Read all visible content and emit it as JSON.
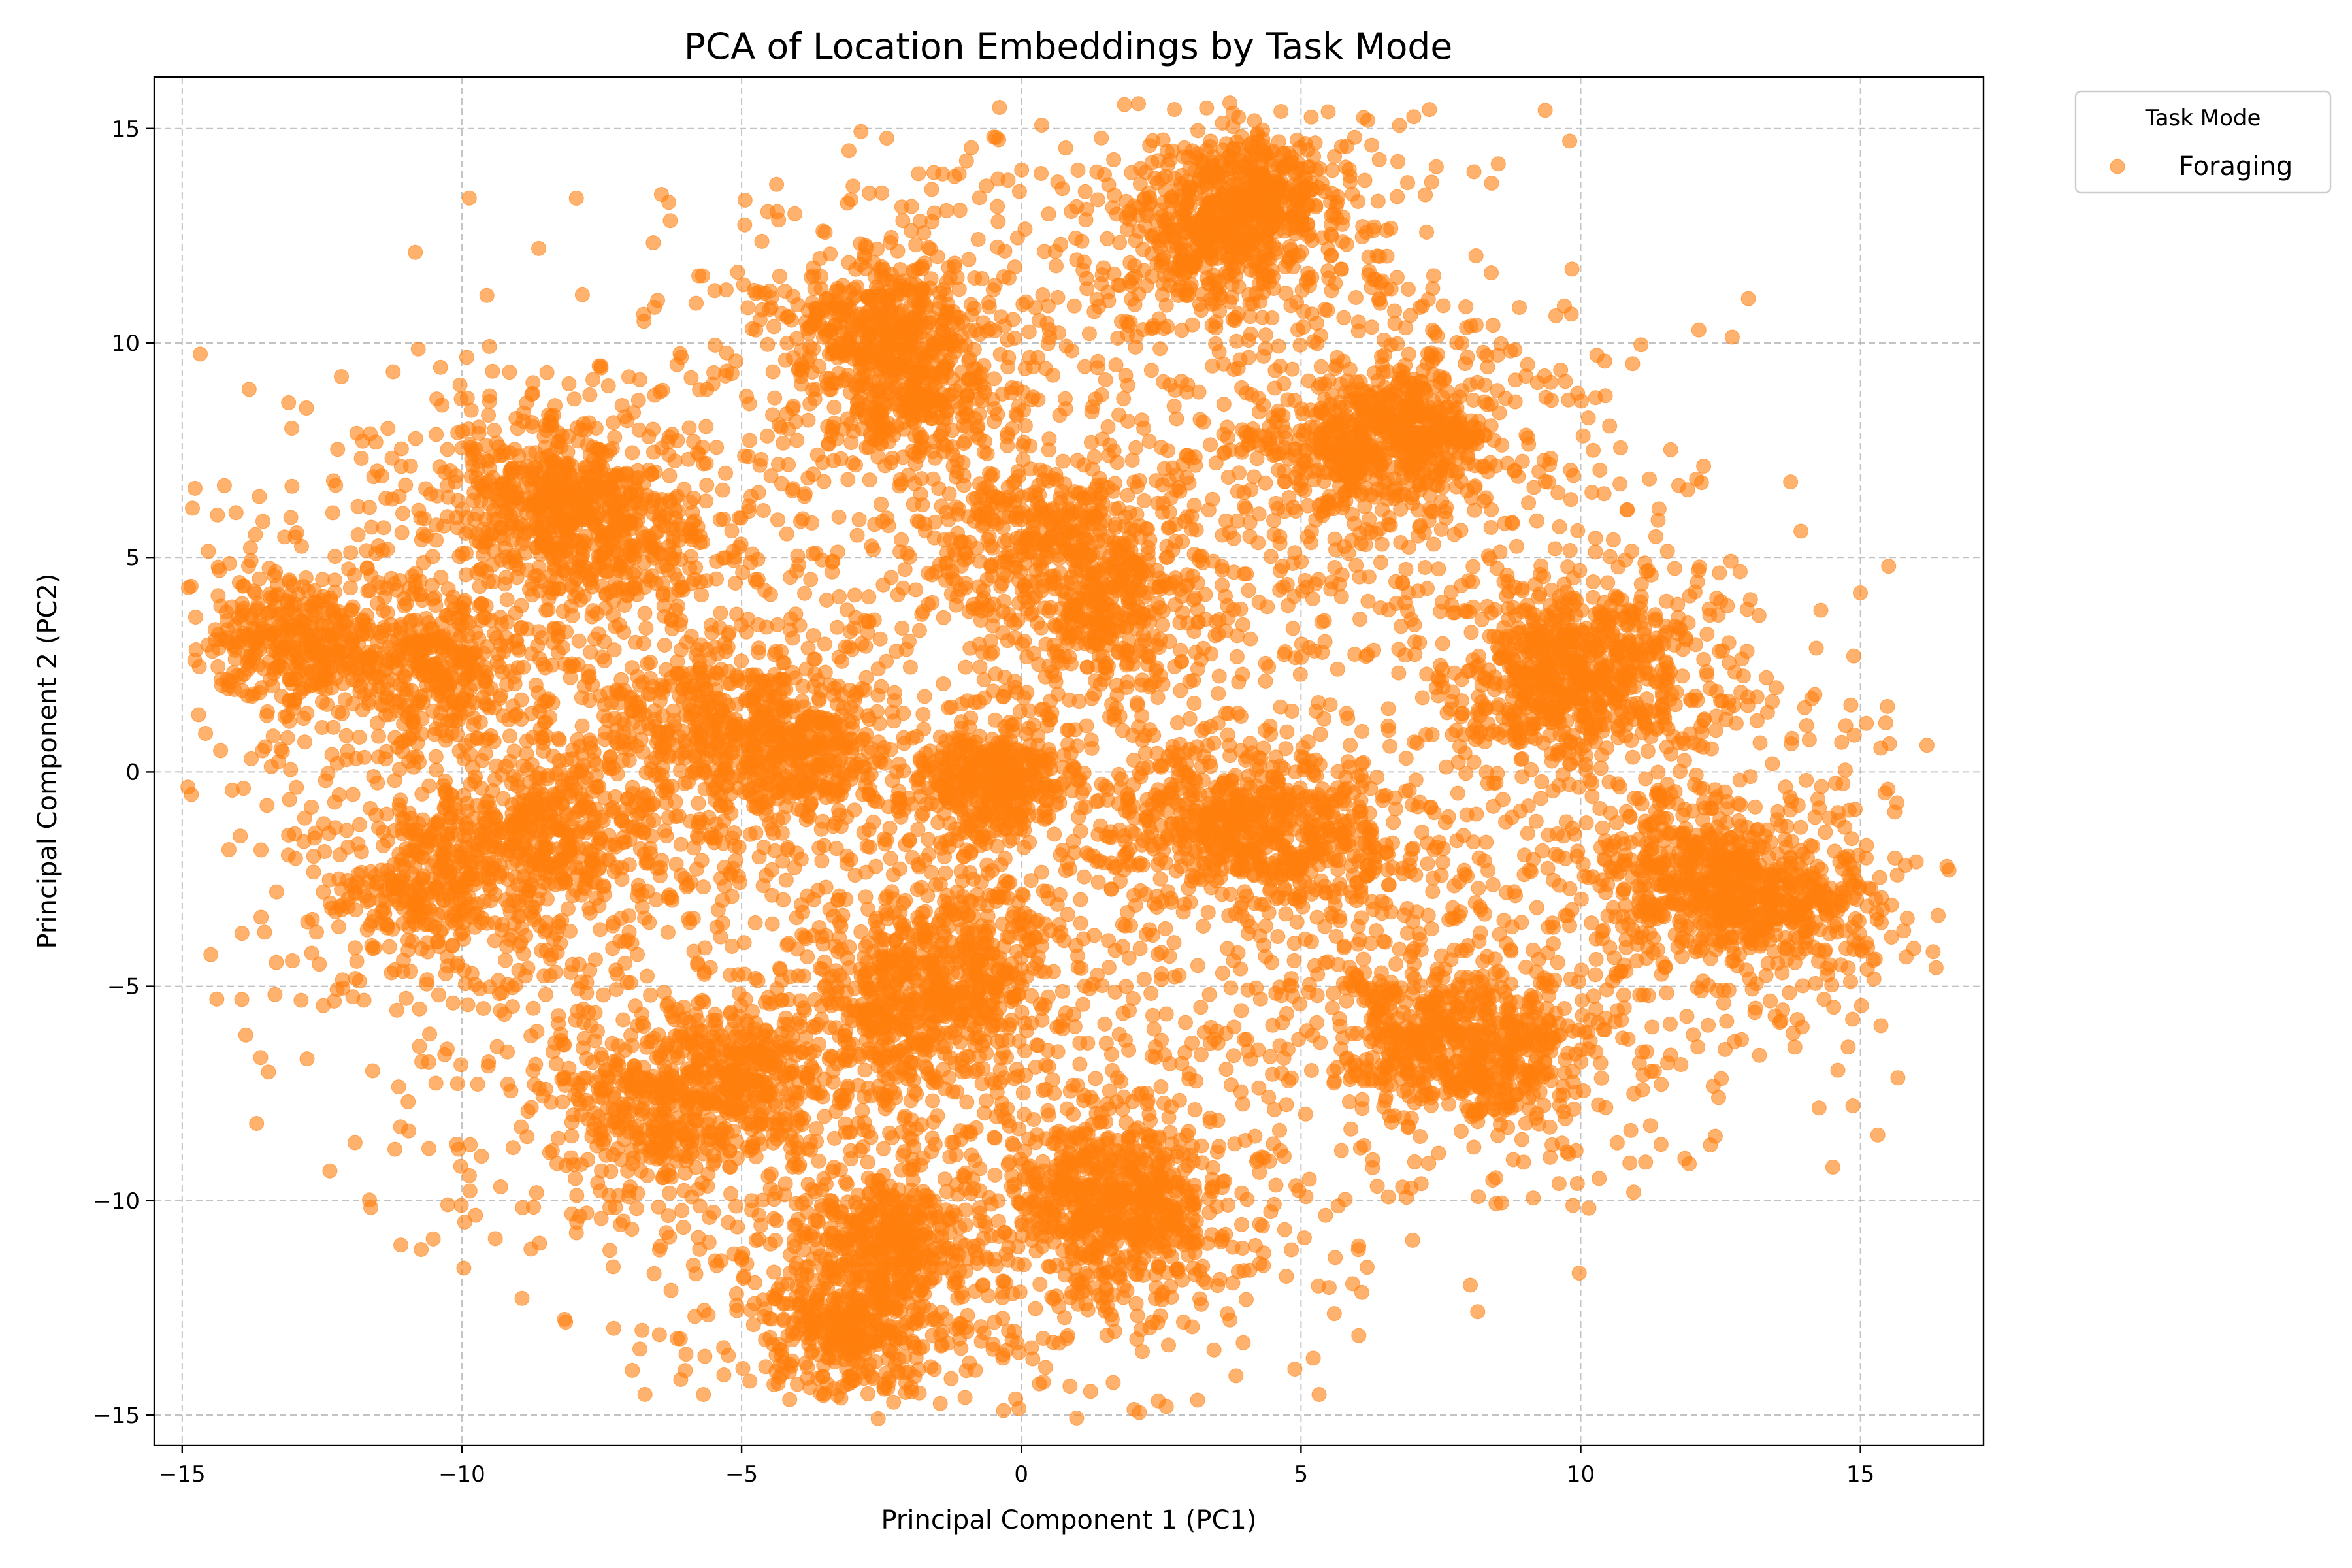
{
  "chart_data": {
    "type": "scatter",
    "title": "PCA of Location Embeddings by Task Mode",
    "xlabel": "Principal Component 1 (PC1)",
    "ylabel": "Principal Component 2 (PC2)",
    "xlim": [
      -15.5,
      17.2
    ],
    "ylim": [
      -15.7,
      16.2
    ],
    "xticks": [
      -15,
      -10,
      -5,
      0,
      5,
      10,
      15
    ],
    "yticks": [
      -15,
      -10,
      -5,
      0,
      5,
      10,
      15
    ],
    "xtick_labels": [
      "−15",
      "−10",
      "−5",
      "0",
      "5",
      "10",
      "15"
    ],
    "ytick_labels": [
      "−15",
      "−10",
      "−5",
      "0",
      "5",
      "10",
      "15"
    ],
    "grid": true,
    "legend": {
      "title": "Task Mode",
      "placement": "outside-top-right",
      "entries": [
        "Foraging"
      ]
    },
    "series": [
      {
        "name": "Foraging",
        "color": "#ff7f0e",
        "alpha": 0.6,
        "point_count": 15000,
        "clusters": [
          {
            "center": [
              -13.0,
              3.0
            ],
            "spread": 0.8
          },
          {
            "center": [
              -10.5,
              2.5
            ],
            "spread": 0.9
          },
          {
            "center": [
              -8.5,
              6.5
            ],
            "spread": 0.9
          },
          {
            "center": [
              -7.5,
              5.5
            ],
            "spread": 0.9
          },
          {
            "center": [
              -10.5,
              -2.5
            ],
            "spread": 0.9
          },
          {
            "center": [
              -8.5,
              -1.5
            ],
            "spread": 0.9
          },
          {
            "center": [
              -5.5,
              1.0
            ],
            "spread": 1.0
          },
          {
            "center": [
              -4.0,
              0.5
            ],
            "spread": 0.9
          },
          {
            "center": [
              -6.5,
              -8.0
            ],
            "spread": 1.0
          },
          {
            "center": [
              -5.0,
              -7.0
            ],
            "spread": 0.9
          },
          {
            "center": [
              -3.0,
              -13.0
            ],
            "spread": 0.7
          },
          {
            "center": [
              -2.5,
              -11.0
            ],
            "spread": 0.7
          },
          {
            "center": [
              -2.5,
              10.5
            ],
            "spread": 0.8
          },
          {
            "center": [
              -2.0,
              9.0
            ],
            "spread": 0.8
          },
          {
            "center": [
              -2.0,
              -5.5
            ],
            "spread": 1.0
          },
          {
            "center": [
              -1.0,
              -4.5
            ],
            "spread": 0.9
          },
          {
            "center": [
              -0.5,
              -0.2
            ],
            "spread": 0.6
          },
          {
            "center": [
              0.5,
              5.5
            ],
            "spread": 1.0
          },
          {
            "center": [
              1.5,
              4.0
            ],
            "spread": 1.0
          },
          {
            "center": [
              2.0,
              -10.5
            ],
            "spread": 0.9
          },
          {
            "center": [
              1.5,
              -9.5
            ],
            "spread": 0.8
          },
          {
            "center": [
              3.5,
              12.5
            ],
            "spread": 0.9
          },
          {
            "center": [
              4.0,
              13.5
            ],
            "spread": 0.7
          },
          {
            "center": [
              3.5,
              -1.0
            ],
            "spread": 1.0
          },
          {
            "center": [
              5.0,
              -1.5
            ],
            "spread": 0.9
          },
          {
            "center": [
              6.0,
              7.5
            ],
            "spread": 0.9
          },
          {
            "center": [
              7.0,
              8.0
            ],
            "spread": 0.8
          },
          {
            "center": [
              7.0,
              -6.0
            ],
            "spread": 0.9
          },
          {
            "center": [
              8.5,
              -6.5
            ],
            "spread": 0.8
          },
          {
            "center": [
              10.5,
              2.5
            ],
            "spread": 0.9
          },
          {
            "center": [
              9.5,
              2.0
            ],
            "spread": 0.9
          },
          {
            "center": [
              12.0,
              -2.5
            ],
            "spread": 0.8
          },
          {
            "center": [
              13.5,
              -3.0
            ],
            "spread": 0.8
          }
        ]
      }
    ]
  }
}
